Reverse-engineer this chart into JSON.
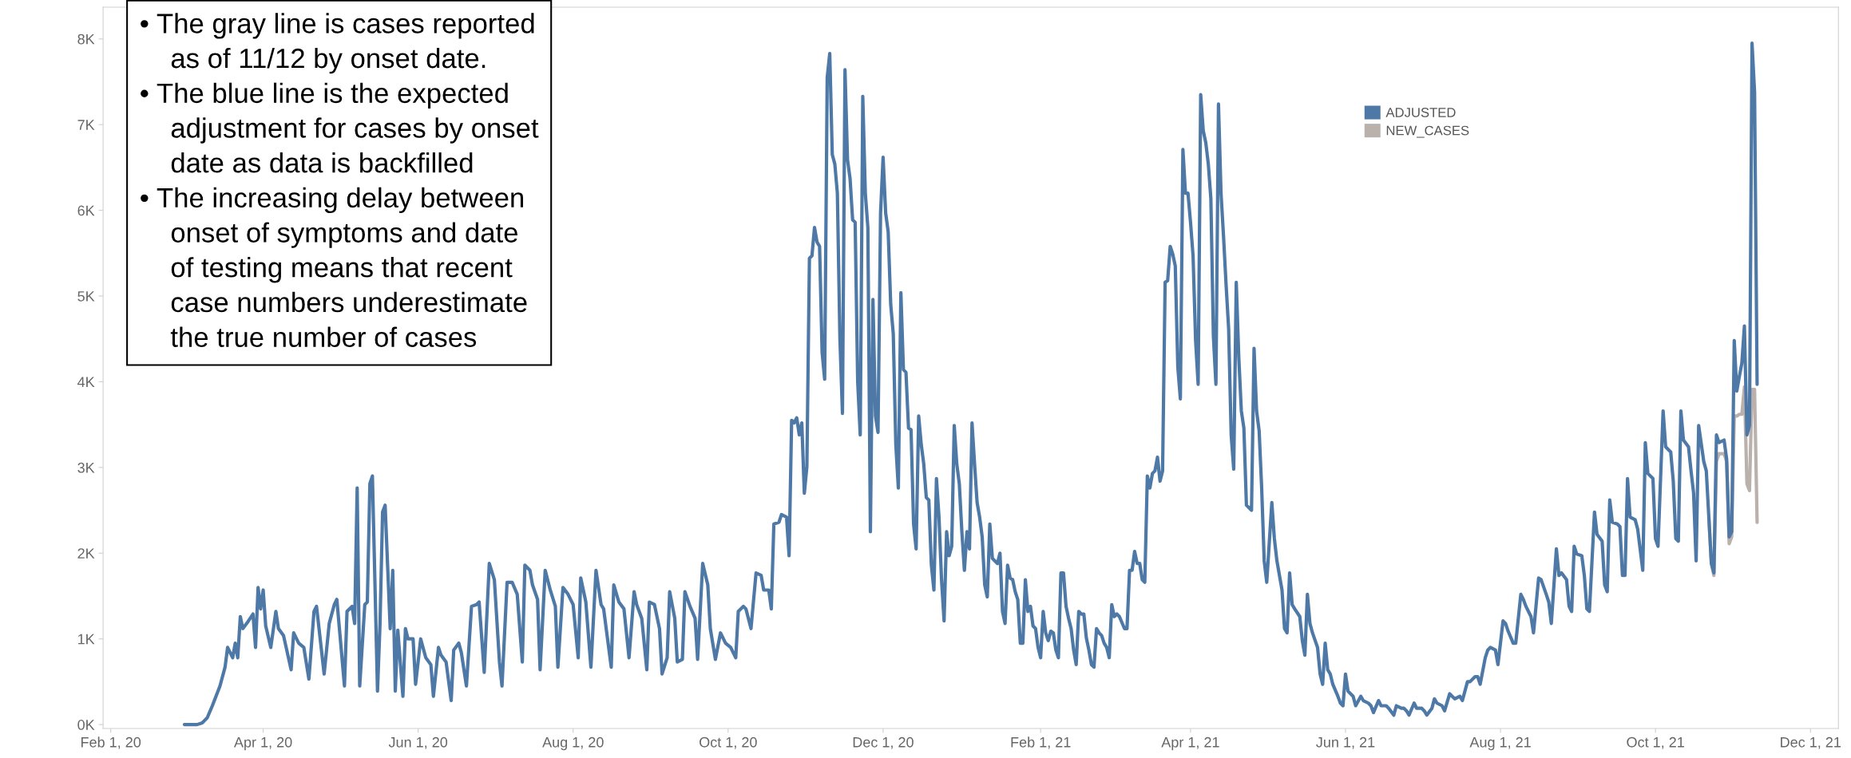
{
  "chart_data": {
    "type": "line",
    "annotations": [
      "• The gray line is cases reported\nas of 11/12 by onset date.",
      "• The blue line is the expected\nadjustment for cases by onset\ndate as data is backfilled",
      "• The increasing delay between\nonset of symptoms and date\nof testing means that recent\ncase numbers underestimate\nthe true number of cases"
    ],
    "xlim": [
      "2020-01-29",
      "2021-12-12"
    ],
    "xticks": [
      {
        "value": "2020-02-01",
        "label": "Feb 1, 20"
      },
      {
        "value": "2020-04-01",
        "label": "Apr 1, 20"
      },
      {
        "value": "2020-06-01",
        "label": "Jun 1, 20"
      },
      {
        "value": "2020-08-01",
        "label": "Aug 1, 20"
      },
      {
        "value": "2020-10-01",
        "label": "Oct 1, 20"
      },
      {
        "value": "2020-12-01",
        "label": "Dec 1, 20"
      },
      {
        "value": "2021-02-01",
        "label": "Feb 1, 21"
      },
      {
        "value": "2021-04-01",
        "label": "Apr 1, 21"
      },
      {
        "value": "2021-06-01",
        "label": "Jun 1, 21"
      },
      {
        "value": "2021-08-01",
        "label": "Aug 1, 21"
      },
      {
        "value": "2021-10-01",
        "label": "Oct 1, 21"
      },
      {
        "value": "2021-12-01",
        "label": "Dec 1, 21"
      }
    ],
    "ylim": [
      -45,
      8370
    ],
    "yticks": [
      {
        "value": 0,
        "label": "0K"
      },
      {
        "value": 1000,
        "label": "1K"
      },
      {
        "value": 2000,
        "label": "2K"
      },
      {
        "value": 3000,
        "label": "3K"
      },
      {
        "value": 4000,
        "label": "4K"
      },
      {
        "value": 5000,
        "label": "5K"
      },
      {
        "value": 6000,
        "label": "6K"
      },
      {
        "value": 7000,
        "label": "7K"
      },
      {
        "value": 8000,
        "label": "8K"
      }
    ],
    "grid": false,
    "legend": "top right",
    "marker": "none",
    "line_style": "solid",
    "series": [
      {
        "name": "ADJUSTED",
        "color": "#4e79a7",
        "x": [
          "2020-03-01",
          "2020-03-06",
          "2020-03-08",
          "2020-03-10",
          "2020-03-12",
          "2020-03-15",
          "2020-03-17",
          "2020-03-18",
          "2020-03-20",
          "2020-03-21",
          "2020-03-22",
          "2020-03-23",
          "2020-03-24",
          "2020-03-26",
          "2020-03-28",
          "2020-03-29",
          "2020-03-30",
          "2020-03-31",
          "2020-04-01",
          "2020-04-02",
          "2020-04-04",
          "2020-04-06",
          "2020-04-07",
          "2020-04-09",
          "2020-04-12",
          "2020-04-13",
          "2020-04-15",
          "2020-04-17",
          "2020-04-19",
          "2020-04-21",
          "2020-04-22",
          "2020-04-25",
          "2020-04-27",
          "2020-04-29",
          "2020-04-30",
          "2020-05-03",
          "2020-05-04",
          "2020-05-06",
          "2020-05-07",
          "2020-05-08",
          "2020-05-09",
          "2020-05-11",
          "2020-05-12",
          "2020-05-13",
          "2020-05-14",
          "2020-05-16",
          "2020-05-17",
          "2020-05-18",
          "2020-05-19",
          "2020-05-21",
          "2020-05-22",
          "2020-05-23",
          "2020-05-24",
          "2020-05-26",
          "2020-05-27",
          "2020-05-28",
          "2020-05-30",
          "2020-05-31",
          "2020-06-02",
          "2020-06-04",
          "2020-06-06",
          "2020-06-07",
          "2020-06-09",
          "2020-06-10",
          "2020-06-12",
          "2020-06-14",
          "2020-06-15",
          "2020-06-17",
          "2020-06-18",
          "2020-06-20",
          "2020-06-22",
          "2020-06-24",
          "2020-06-25",
          "2020-06-27",
          "2020-06-29",
          "2020-07-01",
          "2020-07-03",
          "2020-07-04",
          "2020-07-06",
          "2020-07-08",
          "2020-07-10",
          "2020-07-12",
          "2020-07-13",
          "2020-07-15",
          "2020-07-16",
          "2020-07-18",
          "2020-07-19",
          "2020-07-21",
          "2020-07-23",
          "2020-07-25",
          "2020-07-26",
          "2020-07-28",
          "2020-07-30",
          "2020-08-01",
          "2020-08-03",
          "2020-08-04",
          "2020-08-06",
          "2020-08-08",
          "2020-08-10",
          "2020-08-12",
          "2020-08-13",
          "2020-08-16",
          "2020-08-17",
          "2020-08-19",
          "2020-08-21",
          "2020-08-23",
          "2020-08-25",
          "2020-08-26",
          "2020-08-28",
          "2020-08-30",
          "2020-08-31",
          "2020-09-02",
          "2020-09-04",
          "2020-09-05",
          "2020-09-07",
          "2020-09-08",
          "2020-09-10",
          "2020-09-11",
          "2020-09-13",
          "2020-09-14",
          "2020-09-16",
          "2020-09-18",
          "2020-09-19",
          "2020-09-21",
          "2020-09-23",
          "2020-09-24",
          "2020-09-26",
          "2020-09-28",
          "2020-09-30",
          "2020-10-02",
          "2020-10-04",
          "2020-10-05",
          "2020-10-07",
          "2020-10-08",
          "2020-10-10",
          "2020-10-12",
          "2020-10-14",
          "2020-10-15",
          "2020-10-17",
          "2020-10-18",
          "2020-10-19",
          "2020-10-21",
          "2020-10-22",
          "2020-10-24",
          "2020-10-25",
          "2020-10-26",
          "2020-10-27",
          "2020-10-28",
          "2020-10-29",
          "2020-10-30",
          "2020-10-31",
          "2020-11-01",
          "2020-11-02",
          "2020-11-03",
          "2020-11-04",
          "2020-11-05",
          "2020-11-06",
          "2020-11-07",
          "2020-11-08",
          "2020-11-09",
          "2020-11-10",
          "2020-11-11",
          "2020-11-12",
          "2020-11-13",
          "2020-11-14",
          "2020-11-15",
          "2020-11-16",
          "2020-11-17",
          "2020-11-18",
          "2020-11-19",
          "2020-11-20",
          "2020-11-21",
          "2020-11-22",
          "2020-11-23",
          "2020-11-24",
          "2020-11-25",
          "2020-11-26",
          "2020-11-27",
          "2020-11-28",
          "2020-11-29",
          "2020-11-30",
          "2020-12-01",
          "2020-12-02",
          "2020-12-03",
          "2020-12-04",
          "2020-12-05",
          "2020-12-06",
          "2020-12-07",
          "2020-12-08",
          "2020-12-09",
          "2020-12-10",
          "2020-12-11",
          "2020-12-12",
          "2020-12-13",
          "2020-12-14",
          "2020-12-15",
          "2020-12-16",
          "2020-12-17",
          "2020-12-18",
          "2020-12-19",
          "2020-12-20",
          "2020-12-21",
          "2020-12-22",
          "2020-12-23",
          "2020-12-24",
          "2020-12-25",
          "2020-12-26",
          "2020-12-27",
          "2020-12-28",
          "2020-12-29",
          "2020-12-30",
          "2020-12-31",
          "2021-01-01",
          "2021-01-02",
          "2021-01-03",
          "2021-01-04",
          "2021-01-05",
          "2021-01-06",
          "2021-01-07",
          "2021-01-08",
          "2021-01-09",
          "2021-01-10",
          "2021-01-11",
          "2021-01-12",
          "2021-01-13",
          "2021-01-14",
          "2021-01-15",
          "2021-01-16",
          "2021-01-17",
          "2021-01-18",
          "2021-01-19",
          "2021-01-20",
          "2021-01-21",
          "2021-01-22",
          "2021-01-23",
          "2021-01-24",
          "2021-01-25",
          "2021-01-26",
          "2021-01-27",
          "2021-01-28",
          "2021-01-29",
          "2021-01-30",
          "2021-01-31",
          "2021-02-01",
          "2021-02-02",
          "2021-02-03",
          "2021-02-04",
          "2021-02-05",
          "2021-02-06",
          "2021-02-07",
          "2021-02-08",
          "2021-02-09",
          "2021-02-10",
          "2021-02-11",
          "2021-02-12",
          "2021-02-13",
          "2021-02-14",
          "2021-02-15",
          "2021-02-16",
          "2021-02-17",
          "2021-02-18",
          "2021-02-19",
          "2021-02-20",
          "2021-02-21",
          "2021-02-22",
          "2021-02-23",
          "2021-02-24",
          "2021-02-25",
          "2021-02-26",
          "2021-02-27",
          "2021-02-28",
          "2021-03-01",
          "2021-03-02",
          "2021-03-03",
          "2021-03-04",
          "2021-03-06",
          "2021-03-07",
          "2021-03-08",
          "2021-03-09",
          "2021-03-10",
          "2021-03-11",
          "2021-03-12",
          "2021-03-13",
          "2021-03-14",
          "2021-03-15",
          "2021-03-16",
          "2021-03-17",
          "2021-03-18",
          "2021-03-19",
          "2021-03-20",
          "2021-03-21",
          "2021-03-22",
          "2021-03-23",
          "2021-03-24",
          "2021-03-25",
          "2021-03-26",
          "2021-03-27",
          "2021-03-28",
          "2021-03-29",
          "2021-03-30",
          "2021-03-31",
          "2021-04-01",
          "2021-04-02",
          "2021-04-03",
          "2021-04-04",
          "2021-04-05",
          "2021-04-06",
          "2021-04-07",
          "2021-04-08",
          "2021-04-09",
          "2021-04-10",
          "2021-04-11",
          "2021-04-12",
          "2021-04-13",
          "2021-04-14",
          "2021-04-15",
          "2021-04-16",
          "2021-04-17",
          "2021-04-18",
          "2021-04-19",
          "2021-04-20",
          "2021-04-21",
          "2021-04-22",
          "2021-04-23",
          "2021-04-25",
          "2021-04-26",
          "2021-04-27",
          "2021-04-28",
          "2021-04-29",
          "2021-04-30",
          "2021-05-01",
          "2021-05-03",
          "2021-05-04",
          "2021-05-05",
          "2021-05-07",
          "2021-05-08",
          "2021-05-09",
          "2021-05-10",
          "2021-05-11",
          "2021-05-12",
          "2021-05-14",
          "2021-05-15",
          "2021-05-16",
          "2021-05-17",
          "2021-05-18",
          "2021-05-19",
          "2021-05-21",
          "2021-05-22",
          "2021-05-23",
          "2021-05-24",
          "2021-05-25",
          "2021-05-26",
          "2021-05-27",
          "2021-05-29",
          "2021-05-30",
          "2021-05-31",
          "2021-06-01",
          "2021-06-02",
          "2021-06-04",
          "2021-06-05",
          "2021-06-07",
          "2021-06-08",
          "2021-06-10",
          "2021-06-11",
          "2021-06-12",
          "2021-06-14",
          "2021-06-15",
          "2021-06-17",
          "2021-06-18",
          "2021-06-20",
          "2021-06-21",
          "2021-06-23",
          "2021-06-24",
          "2021-06-25",
          "2021-06-26",
          "2021-06-28",
          "2021-06-29",
          "2021-07-01",
          "2021-07-02",
          "2021-07-03",
          "2021-07-05",
          "2021-07-06",
          "2021-07-07",
          "2021-07-09",
          "2021-07-10",
          "2021-07-12",
          "2021-07-13",
          "2021-07-14",
          "2021-07-16",
          "2021-07-17",
          "2021-07-19",
          "2021-07-20",
          "2021-07-22",
          "2021-07-23",
          "2021-07-24",
          "2021-07-26",
          "2021-07-27",
          "2021-07-28",
          "2021-07-30",
          "2021-07-31",
          "2021-08-02",
          "2021-08-03",
          "2021-08-04",
          "2021-08-06",
          "2021-08-07",
          "2021-08-09",
          "2021-08-10",
          "2021-08-11",
          "2021-08-13",
          "2021-08-14",
          "2021-08-16",
          "2021-08-17",
          "2021-08-19",
          "2021-08-20",
          "2021-08-21",
          "2021-08-23",
          "2021-08-24",
          "2021-08-25",
          "2021-08-27",
          "2021-08-28",
          "2021-08-29",
          "2021-08-30",
          "2021-08-31",
          "2021-09-02",
          "2021-09-03",
          "2021-09-04",
          "2021-09-05",
          "2021-09-07",
          "2021-09-08",
          "2021-09-10",
          "2021-09-11",
          "2021-09-12",
          "2021-09-13",
          "2021-09-14",
          "2021-09-16",
          "2021-09-17",
          "2021-09-18",
          "2021-09-19",
          "2021-09-20",
          "2021-09-21",
          "2021-09-23",
          "2021-09-24",
          "2021-09-26",
          "2021-09-27",
          "2021-09-28",
          "2021-09-30",
          "2021-10-01",
          "2021-10-02",
          "2021-10-04",
          "2021-10-05",
          "2021-10-07",
          "2021-10-08",
          "2021-10-09",
          "2021-10-10",
          "2021-10-11",
          "2021-10-12",
          "2021-10-14",
          "2021-10-15",
          "2021-10-16",
          "2021-10-17",
          "2021-10-18",
          "2021-10-20",
          "2021-10-21",
          "2021-10-22",
          "2021-10-23",
          "2021-10-24",
          "2021-10-25",
          "2021-10-26",
          "2021-10-28",
          "2021-10-29",
          "2021-10-30",
          "2021-10-31",
          "2021-11-01",
          "2021-11-02",
          "2021-11-03",
          "2021-11-04",
          "2021-11-05",
          "2021-11-06",
          "2021-11-07",
          "2021-11-08",
          "2021-11-09",
          "2021-11-10"
        ],
        "values": [
          0,
          0,
          20,
          80,
          220,
          450,
          670,
          900,
          780,
          950,
          780,
          1260,
          1120,
          1200,
          1290,
          900,
          1600,
          1350,
          1570,
          1150,
          900,
          1320,
          1120,
          1040,
          640,
          1070,
          950,
          900,
          530,
          1320,
          1380,
          590,
          1180,
          1400,
          1460,
          450,
          1320,
          1380,
          1180,
          2760,
          450,
          1400,
          1430,
          2810,
          2900,
          390,
          1180,
          2480,
          2560,
          1120,
          1800,
          390,
          1100,
          330,
          1120,
          1000,
          1000,
          470,
          1000,
          780,
          700,
          330,
          900,
          810,
          730,
          280,
          870,
          950,
          840,
          450,
          1380,
          1400,
          1430,
          610,
          1880,
          1690,
          730,
          450,
          1660,
          1660,
          1520,
          730,
          1860,
          1800,
          1630,
          1460,
          640,
          1800,
          1570,
          1380,
          670,
          1600,
          1520,
          1400,
          780,
          1710,
          1430,
          670,
          1800,
          1400,
          1350,
          670,
          1630,
          1430,
          1350,
          780,
          1550,
          1400,
          1240,
          640,
          1430,
          1400,
          1120,
          590,
          780,
          1550,
          1240,
          730,
          760,
          1550,
          1380,
          1240,
          760,
          1880,
          1630,
          1120,
          760,
          1070,
          950,
          900,
          780,
          1320,
          1380,
          1350,
          1120,
          1770,
          1740,
          1570,
          1570,
          1350,
          2340,
          2360,
          2450,
          2420,
          1970,
          3550,
          3520,
          3580,
          3380,
          3520,
          2700,
          3010,
          5440,
          5470,
          5800,
          5630,
          5580,
          4340,
          4030,
          7550,
          7830,
          6650,
          6540,
          6200,
          4510,
          3630,
          7640,
          6590,
          6370,
          5890,
          5860,
          4000,
          3380,
          7330,
          6200,
          5800,
          2250,
          4960,
          3600,
          3410,
          5970,
          6620,
          5970,
          5750,
          4900,
          4560,
          3270,
          2760,
          5040,
          4140,
          4110,
          3460,
          3440,
          2340,
          2050,
          3600,
          3270,
          3040,
          2650,
          2620,
          1860,
          1570,
          2870,
          2420,
          1690,
          1210,
          2250,
          1970,
          2080,
          3490,
          3040,
          2810,
          2250,
          1800,
          2250,
          2050,
          3520,
          3040,
          2590,
          2420,
          2190,
          1630,
          1490,
          2340,
          1940,
          1910,
          1880,
          2000,
          1320,
          1180,
          1860,
          1710,
          1690,
          1550,
          1460,
          950,
          950,
          1690,
          1320,
          1380,
          1150,
          1120,
          900,
          780,
          1320,
          1070,
          980,
          1090,
          1070,
          870,
          780,
          1770,
          1770,
          1380,
          1240,
          1120,
          870,
          700,
          1320,
          1290,
          1290,
          1010,
          870,
          700,
          670,
          1120,
          1070,
          1040,
          950,
          900,
          780,
          1400,
          1260,
          1290,
          1260,
          1120,
          1120,
          1800,
          1800,
          2020,
          1880,
          1880,
          1690,
          1660,
          2900,
          2760,
          2930,
          2960,
          3120,
          2840,
          2960,
          5160,
          5180,
          5580,
          5490,
          5350,
          4170,
          3800,
          6710,
          6200,
          6200,
          5860,
          5470,
          4480,
          3970,
          7350,
          6930,
          6790,
          6540,
          6140,
          4530,
          3970,
          7240,
          6200,
          5690,
          5130,
          4620,
          3380,
          2980,
          5160,
          4280,
          3660,
          3460,
          2560,
          2500,
          4390,
          3660,
          3430,
          2760,
          1910,
          1660,
          2590,
          2170,
          1910,
          1570,
          1120,
          1070,
          1770,
          1400,
          1350,
          1260,
          980,
          810,
          1520,
          1180,
          1070,
          900,
          590,
          470,
          950,
          640,
          590,
          470,
          330,
          250,
          220,
          590,
          390,
          330,
          220,
          330,
          280,
          250,
          220,
          140,
          280,
          220,
          220,
          190,
          110,
          220,
          190,
          190,
          160,
          110,
          250,
          190,
          190,
          160,
          110,
          190,
          300,
          250,
          220,
          160,
          360,
          330,
          300,
          330,
          280,
          500,
          500,
          560,
          560,
          470,
          780,
          870,
          900,
          870,
          700,
          1210,
          1180,
          1090,
          950,
          950,
          1520,
          1460,
          1380,
          1260,
          1070,
          1710,
          1690,
          1520,
          1430,
          1180,
          2050,
          1740,
          1770,
          1690,
          1380,
          1320,
          2080,
          1990,
          1970,
          1740,
          1350,
          1320,
          2480,
          2220,
          2140,
          1630,
          1550,
          2620,
          2360,
          2340,
          2310,
          1740,
          1740,
          2870,
          2420,
          2390,
          2280,
          1800,
          3290,
          2930,
          2870,
          2170,
          2080,
          3660,
          3240,
          3180,
          2840,
          2170,
          2140,
          3660,
          3320,
          3240,
          2960,
          2700,
          1910,
          3490,
          3070,
          2960,
          2420,
          1880,
          1770,
          3380,
          3290,
          3320,
          3100,
          2190,
          2250,
          4480,
          3890,
          4060,
          4220,
          4650,
          3380,
          3490,
          7950,
          7380,
          3970
        ]
      },
      {
        "name": "NEW_CASES",
        "color": "#bab0ac",
        "x": [
          "2021-10-22",
          "2021-10-23",
          "2021-10-24",
          "2021-10-25",
          "2021-10-26",
          "2021-10-28",
          "2021-10-29",
          "2021-10-30",
          "2021-10-31",
          "2021-11-01",
          "2021-11-02",
          "2021-11-03",
          "2021-11-04",
          "2021-11-05",
          "2021-11-06",
          "2021-11-07",
          "2021-11-08",
          "2021-11-09",
          "2021-11-10"
        ],
        "values": [
          2420,
          1880,
          1740,
          3070,
          3160,
          3160,
          3070,
          2110,
          2190,
          3600,
          3600,
          3620,
          3620,
          3940,
          2810,
          2730,
          3910,
          3910,
          2360
        ]
      }
    ]
  }
}
